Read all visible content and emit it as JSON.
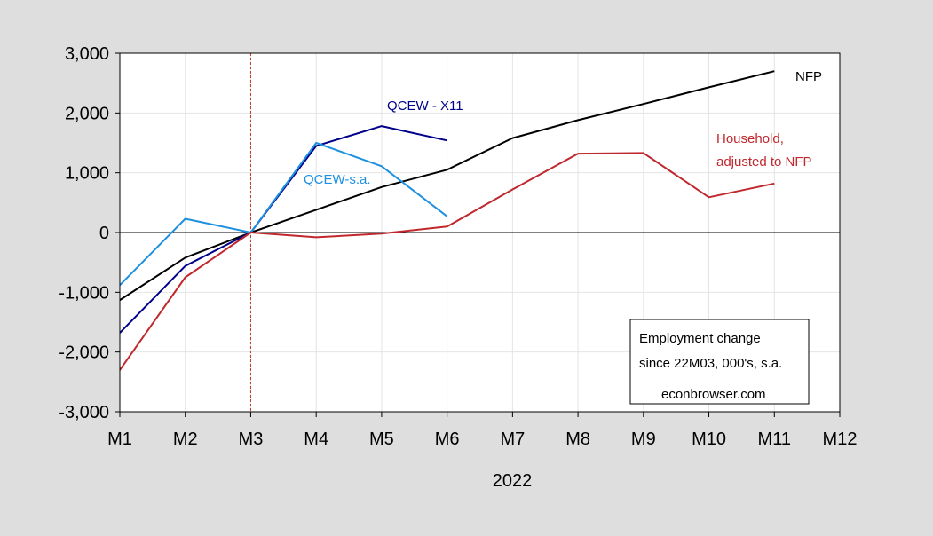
{
  "chart_data": {
    "type": "line",
    "x": [
      "M1",
      "M2",
      "M3",
      "M4",
      "M5",
      "M6",
      "M7",
      "M8",
      "M9",
      "M10",
      "M11",
      "M12"
    ],
    "xlabel": "2022",
    "ylim": [
      -3000,
      3000
    ],
    "yticks": [
      3000,
      2000,
      1000,
      0,
      -1000,
      -2000,
      -3000
    ],
    "ytick_labels": [
      "3,000",
      "2,000",
      "1,000",
      "0",
      "-1,000",
      "-2,000",
      "-3,000"
    ],
    "grid": true,
    "reference_line": {
      "x": "M3",
      "color": "#c0392b",
      "style": "dashed"
    },
    "annotation": {
      "lines": [
        "Employment change",
        "since 22M03, 000's, s.a."
      ],
      "source": "econbrowser.com"
    },
    "series": [
      {
        "name": "NFP",
        "label_lines": [
          "NFP"
        ],
        "color": "#000000",
        "values": [
          -1130,
          -420,
          0,
          380,
          760,
          1050,
          1580,
          1880,
          2150,
          2430,
          2700,
          null
        ]
      },
      {
        "name": "QCEW - X11",
        "label_lines": [
          "QCEW - X11"
        ],
        "color": "#00008b",
        "values": [
          -1680,
          -560,
          0,
          1450,
          1780,
          1540,
          null,
          null,
          null,
          null,
          null,
          null
        ]
      },
      {
        "name": "QCEW-s.a.",
        "label_lines": [
          "QCEW-s.a."
        ],
        "color": "#1e90e0",
        "values": [
          -880,
          230,
          0,
          1500,
          1110,
          270,
          null,
          null,
          null,
          null,
          null,
          null
        ]
      },
      {
        "name": "Household, adjusted to NFP",
        "label_lines": [
          "Household,",
          "adjusted to NFP"
        ],
        "color": "#c0282d",
        "values": [
          -2300,
          -750,
          0,
          -80,
          -20,
          100,
          720,
          1320,
          1330,
          590,
          820,
          null
        ]
      }
    ]
  }
}
